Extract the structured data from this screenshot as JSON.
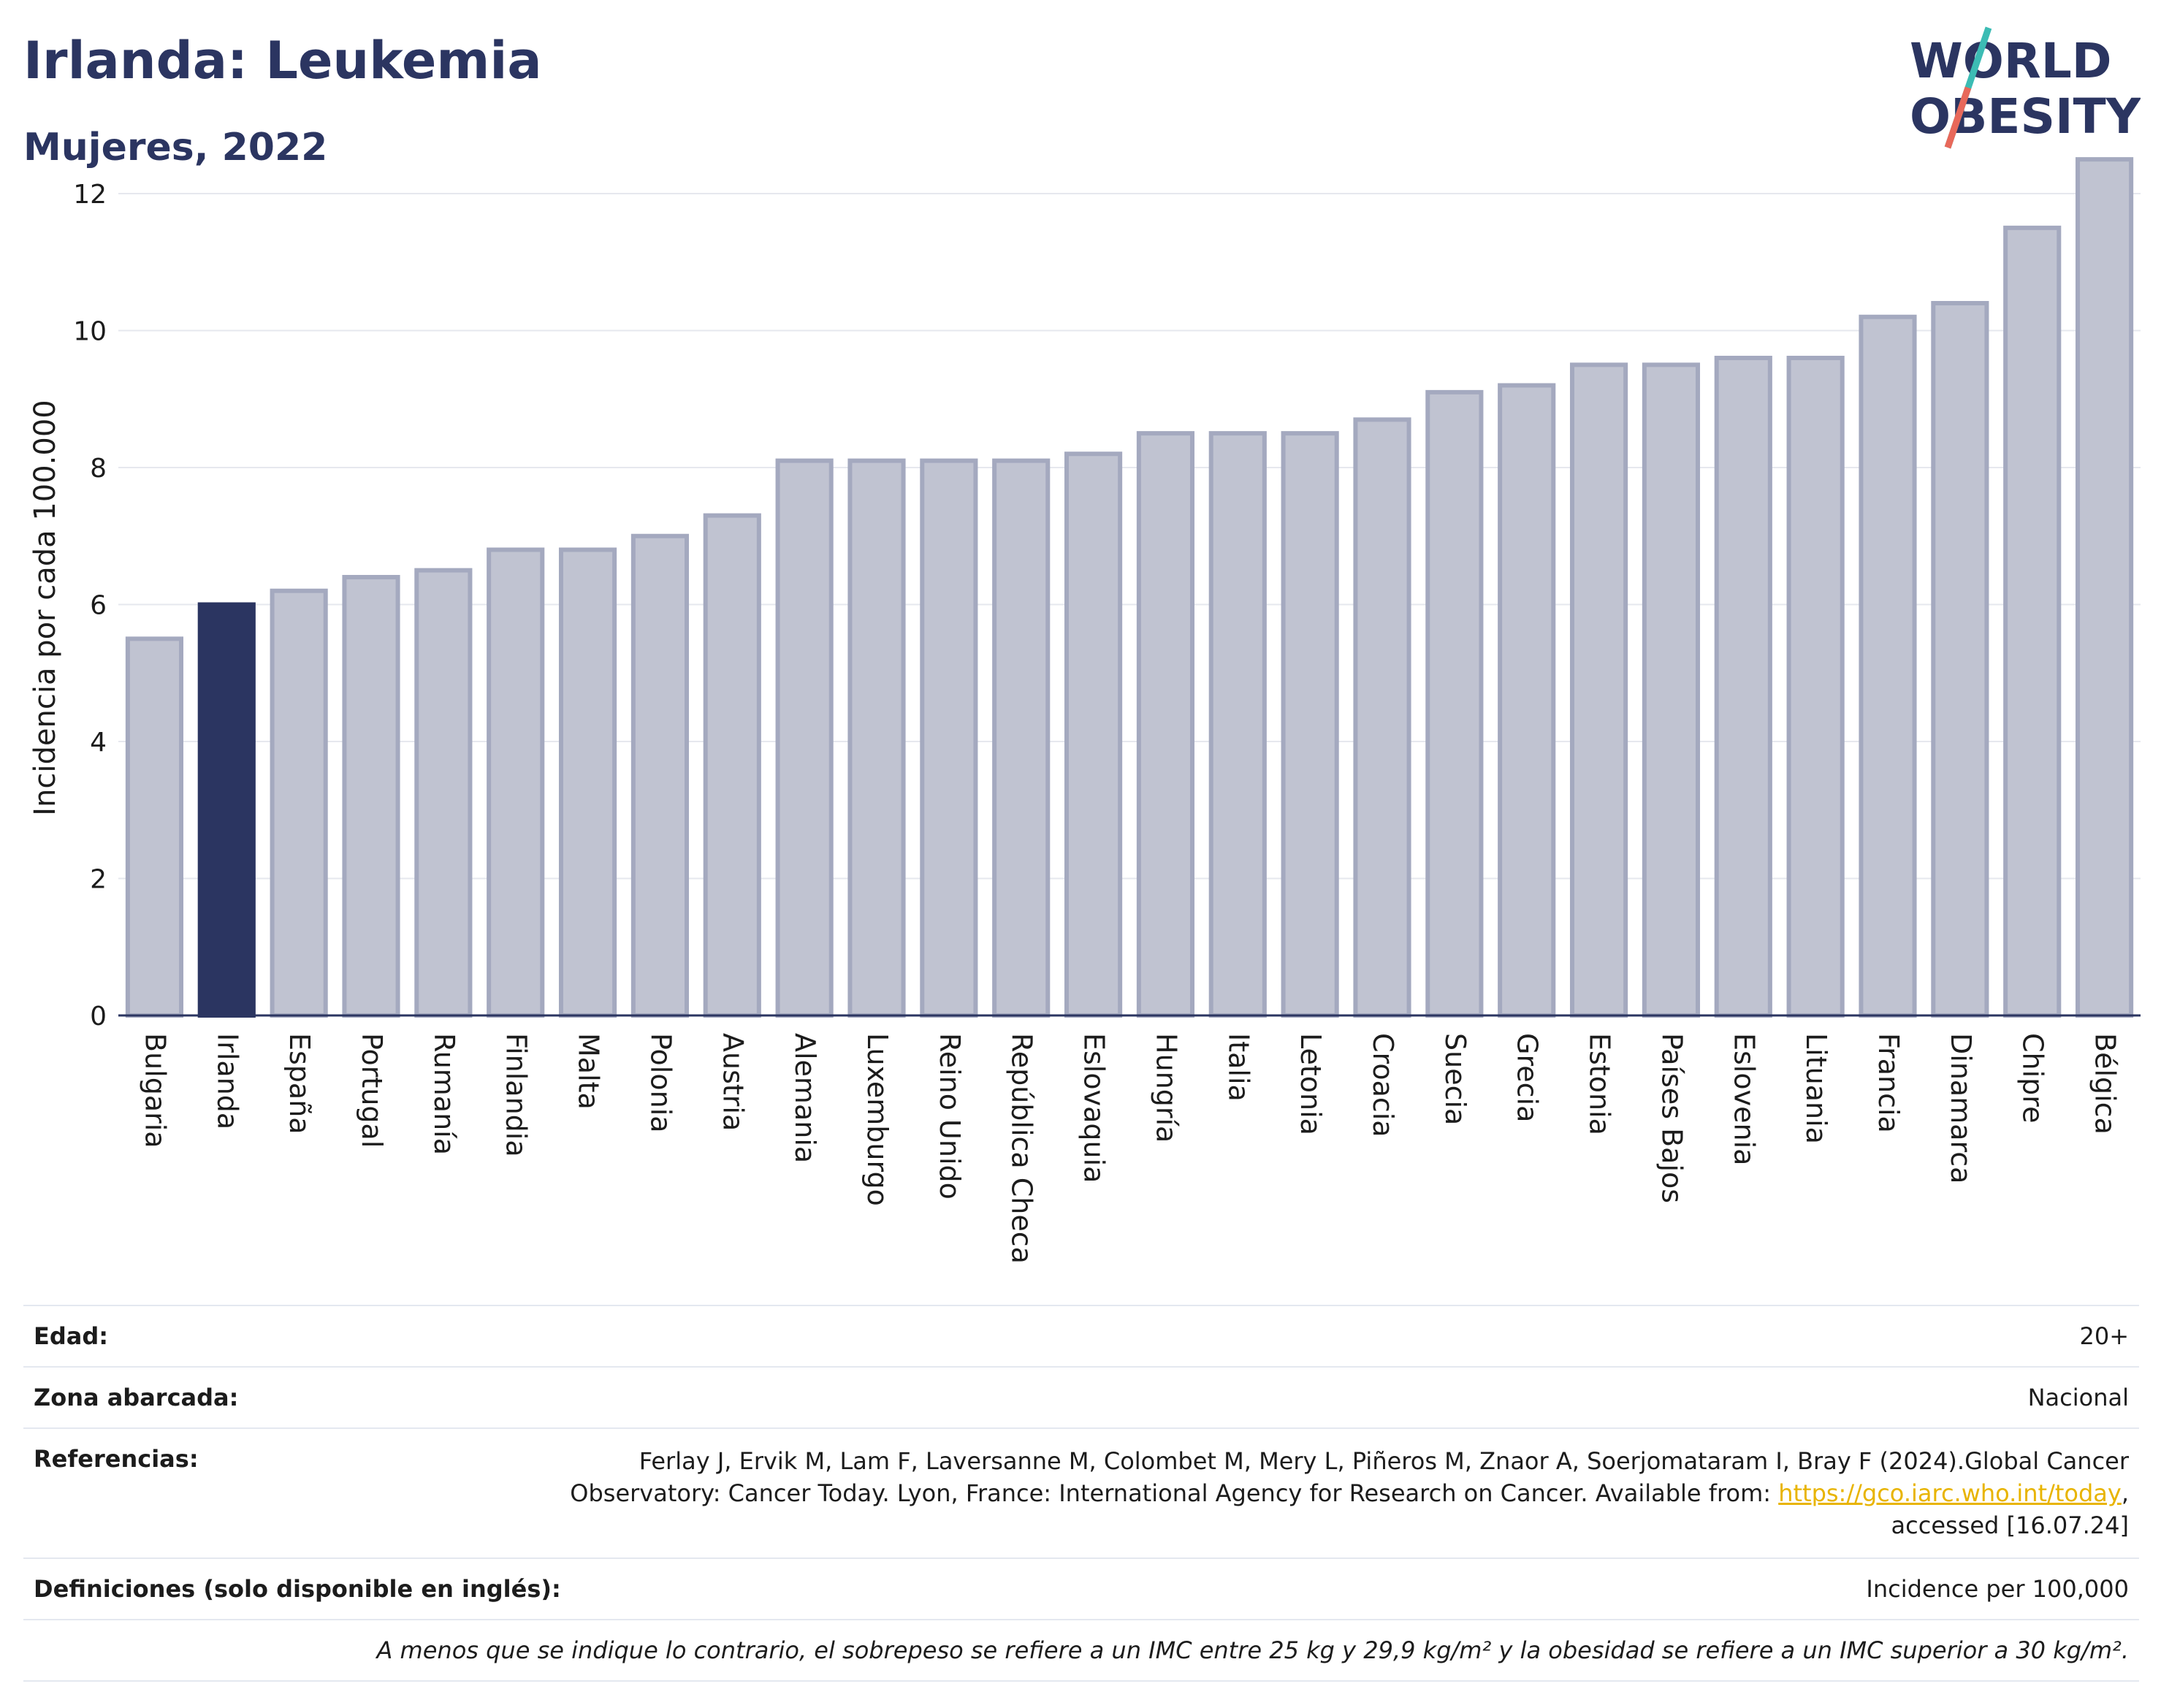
{
  "header": {
    "title": "Irlanda: Leukemia",
    "subtitle": "Mujeres, 2022"
  },
  "logo": {
    "line1": "WORLD",
    "line2": "OBESITY"
  },
  "chart_data": {
    "type": "bar",
    "ylabel": "Incidencia por cada 100.000",
    "ylim": [
      0,
      12.8
    ],
    "yticks": [
      0,
      2,
      4,
      6,
      8,
      10,
      12
    ],
    "grid": true,
    "categories": [
      "Bulgaria",
      "Irlanda",
      "España",
      "Portugal",
      "Rumanía",
      "Finlandia",
      "Malta",
      "Polonia",
      "Austria",
      "Alemania",
      "Luxemburgo",
      "Reino Unido",
      "República Checa",
      "Eslovaquia",
      "Hungría",
      "Italia",
      "Letonia",
      "Croacia",
      "Suecia",
      "Grecia",
      "Estonia",
      "Países Bajos",
      "Eslovenia",
      "Lituania",
      "Francia",
      "Dinamarca",
      "Chipre",
      "Bélgica"
    ],
    "values": [
      5.5,
      6.0,
      6.2,
      6.4,
      6.5,
      6.8,
      6.8,
      7.0,
      7.3,
      8.1,
      8.1,
      8.1,
      8.1,
      8.2,
      8.5,
      8.5,
      8.5,
      8.7,
      9.1,
      9.2,
      9.5,
      9.5,
      9.6,
      9.6,
      10.2,
      10.4,
      11.5,
      12.5
    ],
    "highlight": "Irlanda",
    "colors": {
      "bar": "#c0c3d1",
      "bar_border": "#a4a9bf",
      "highlight": "#2b3561"
    }
  },
  "info": {
    "edad_label": "Edad:",
    "edad_value": "20+",
    "zona_label": "Zona abarcada:",
    "zona_value": "Nacional",
    "ref_label": "Referencias:",
    "ref_text_before": "Ferlay J, Ervik M, Lam F, Laversanne M, Colombet M, Mery L, Piñeros M, Znaor A, Soerjomataram I, Bray F (2024).Global Cancer Observatory: Cancer Today. Lyon, France: International Agency for Research on Cancer. Available from: ",
    "ref_link": "https://gco.iarc.who.int/today",
    "ref_text_after": ", accessed [16.07.24]",
    "def_label": "Definiciones (solo disponible en inglés):",
    "def_value": "Incidence per 100,000",
    "note": "A menos que se indique lo contrario, el sobrepeso se refiere a un IMC entre 25 kg y 29,9 kg/m² y la obesidad se refiere a un IMC superior a 30 kg/m²."
  }
}
